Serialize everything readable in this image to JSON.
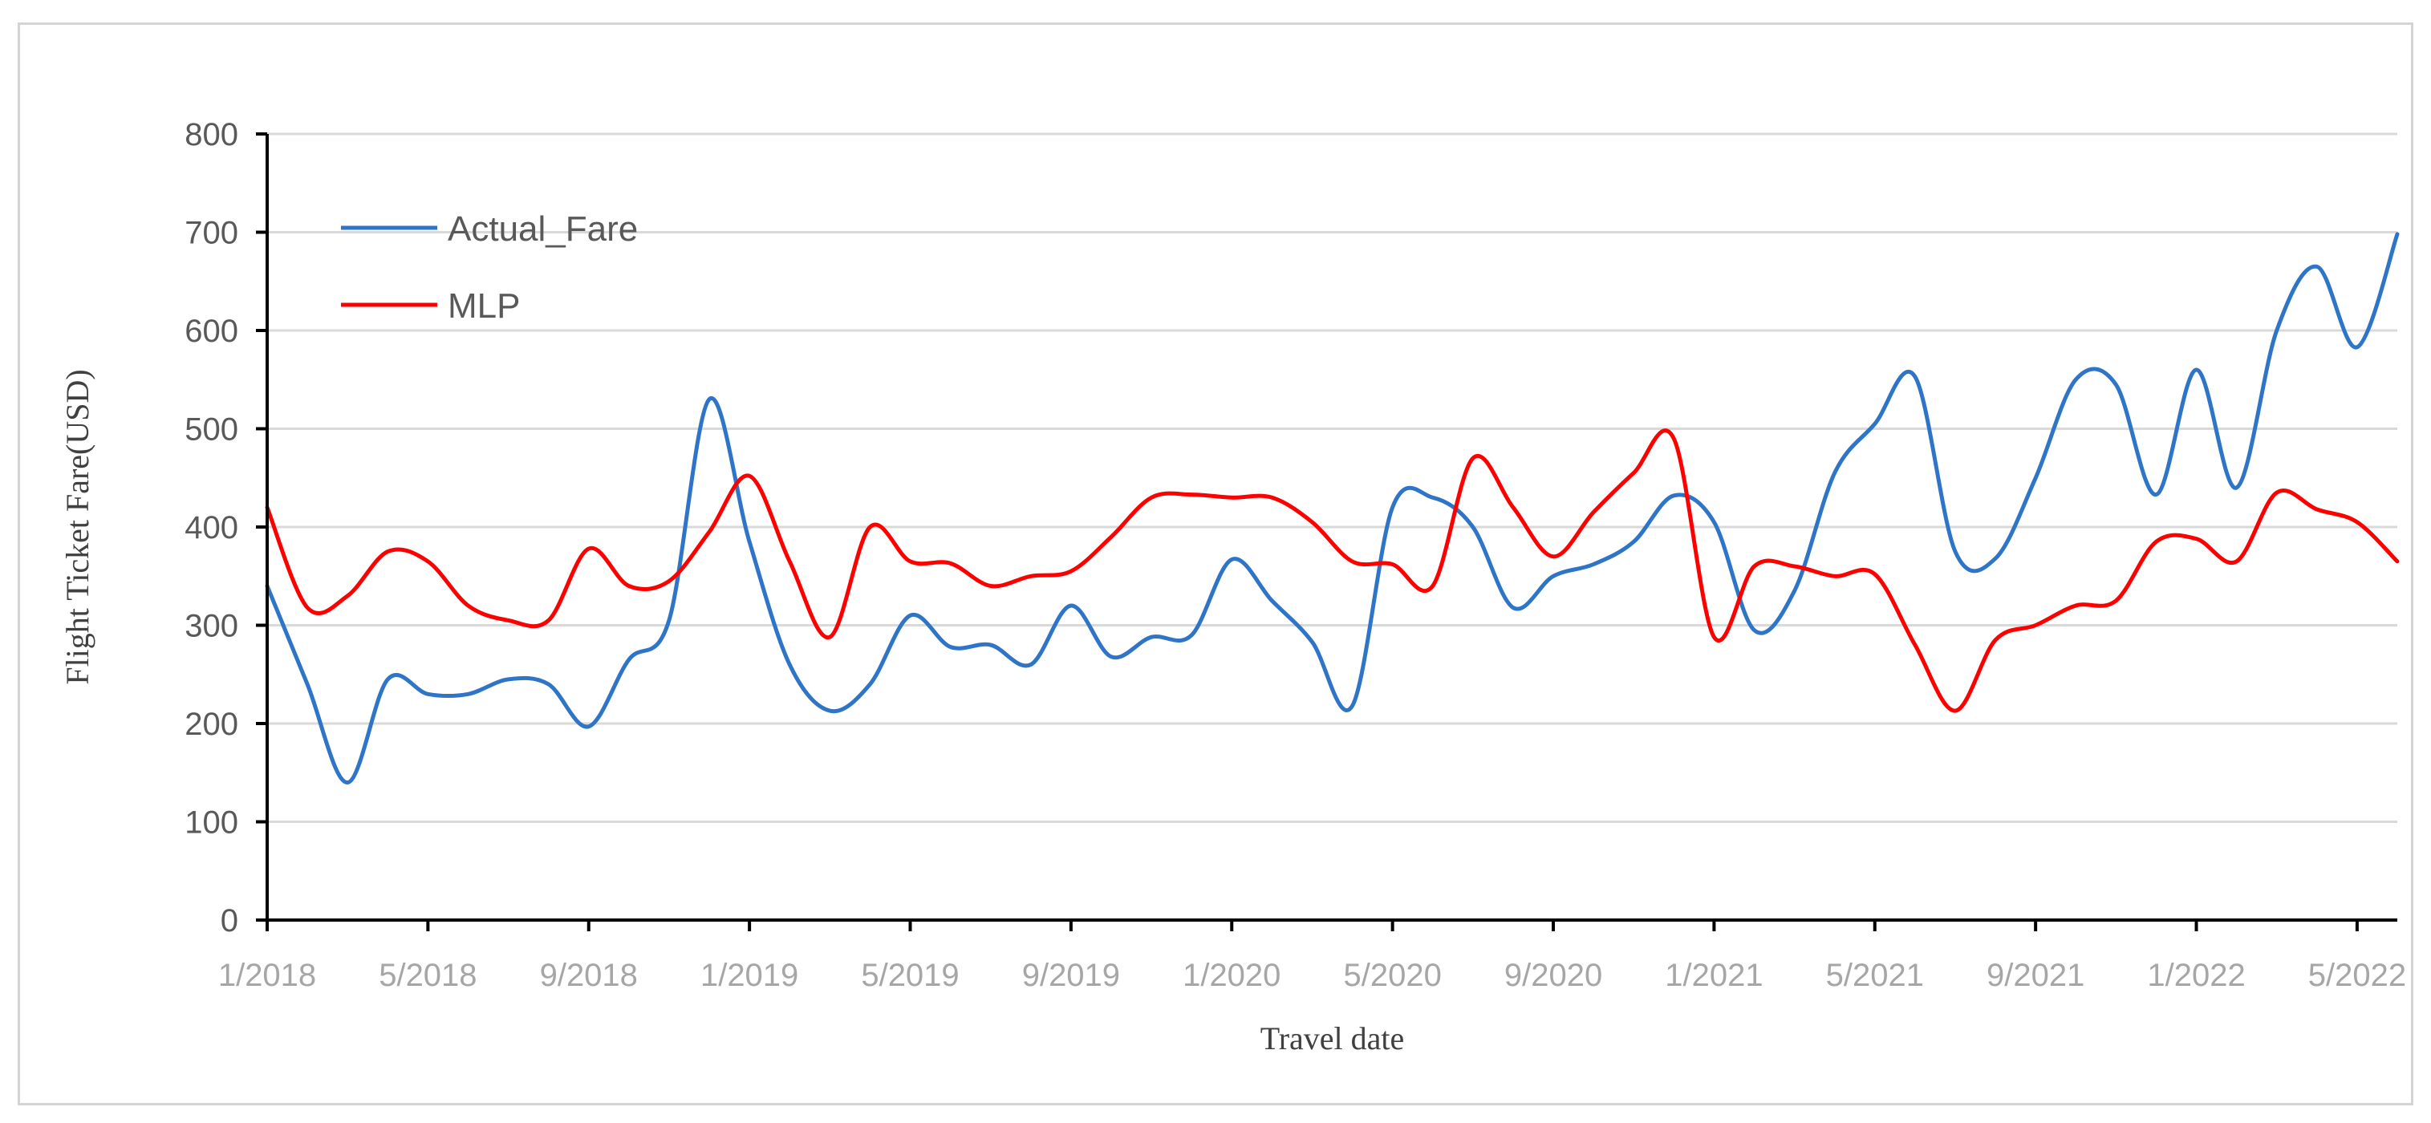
{
  "chart_data": {
    "type": "line",
    "title": "",
    "xlabel": "Travel date",
    "ylabel": "Flight Ticket Fare(USD)",
    "ylim": [
      0,
      800
    ],
    "yticks": [
      0,
      100,
      200,
      300,
      400,
      500,
      600,
      700,
      800
    ],
    "x_start": "1/2018",
    "x_end": "6/2022",
    "xtick_labels": [
      "1/2018",
      "5/2018",
      "9/2018",
      "1/2019",
      "5/2019",
      "9/2019",
      "1/2020",
      "5/2020",
      "9/2020",
      "1/2021",
      "5/2021",
      "9/2021",
      "1/2022",
      "5/2022"
    ],
    "grid": "horizontal",
    "legend_position": "top-left",
    "series": [
      {
        "name": "Actual_Fare",
        "color": "#2e75c8",
        "points": [
          [
            "1/2018",
            340
          ],
          [
            "2/2018",
            240
          ],
          [
            "3/2018",
            140
          ],
          [
            "4/2018",
            245
          ],
          [
            "5/2018",
            230
          ],
          [
            "6/2018",
            230
          ],
          [
            "7/2018",
            245
          ],
          [
            "8/2018",
            240
          ],
          [
            "9/2018",
            197
          ],
          [
            "10/2018",
            265
          ],
          [
            "11/2018",
            305
          ],
          [
            "12/2018",
            530
          ],
          [
            "1/2019",
            385
          ],
          [
            "2/2019",
            260
          ],
          [
            "3/2019",
            213
          ],
          [
            "4/2019",
            240
          ],
          [
            "5/2019",
            310
          ],
          [
            "6/2019",
            278
          ],
          [
            "7/2019",
            280
          ],
          [
            "8/2019",
            260
          ],
          [
            "9/2019",
            320
          ],
          [
            "10/2019",
            268
          ],
          [
            "11/2019",
            288
          ],
          [
            "12/2019",
            290
          ],
          [
            "1/2020",
            367
          ],
          [
            "2/2020",
            325
          ],
          [
            "3/2020",
            283
          ],
          [
            "4/2020",
            218
          ],
          [
            "5/2020",
            420
          ],
          [
            "6/2020",
            430
          ],
          [
            "7/2020",
            400
          ],
          [
            "8/2020",
            318
          ],
          [
            "9/2020",
            350
          ],
          [
            "10/2020",
            362
          ],
          [
            "11/2020",
            385
          ],
          [
            "12/2020",
            432
          ],
          [
            "1/2021",
            405
          ],
          [
            "2/2021",
            295
          ],
          [
            "3/2021",
            335
          ],
          [
            "4/2021",
            455
          ],
          [
            "5/2021",
            505
          ],
          [
            "6/2021",
            553
          ],
          [
            "7/2021",
            375
          ],
          [
            "8/2021",
            368
          ],
          [
            "9/2021",
            450
          ],
          [
            "10/2021",
            550
          ],
          [
            "11/2021",
            545
          ],
          [
            "12/2021",
            433
          ],
          [
            "1/2022",
            560
          ],
          [
            "2/2022",
            440
          ],
          [
            "3/2022",
            600
          ],
          [
            "4/2022",
            665
          ],
          [
            "5/2022",
            583
          ],
          [
            "6/2022",
            698
          ]
        ]
      },
      {
        "name": "MLP",
        "color": "#ff0000",
        "points": [
          [
            "1/2018",
            420
          ],
          [
            "2/2018",
            318
          ],
          [
            "3/2018",
            330
          ],
          [
            "4/2018",
            375
          ],
          [
            "5/2018",
            365
          ],
          [
            "6/2018",
            320
          ],
          [
            "7/2018",
            305
          ],
          [
            "8/2018",
            305
          ],
          [
            "9/2018",
            378
          ],
          [
            "10/2018",
            340
          ],
          [
            "11/2018",
            345
          ],
          [
            "12/2018",
            395
          ],
          [
            "1/2019",
            452
          ],
          [
            "2/2019",
            365
          ],
          [
            "3/2019",
            288
          ],
          [
            "4/2019",
            400
          ],
          [
            "5/2019",
            365
          ],
          [
            "6/2019",
            363
          ],
          [
            "7/2019",
            340
          ],
          [
            "8/2019",
            350
          ],
          [
            "9/2019",
            355
          ],
          [
            "10/2019",
            390
          ],
          [
            "11/2019",
            430
          ],
          [
            "12/2019",
            433
          ],
          [
            "1/2020",
            430
          ],
          [
            "2/2020",
            430
          ],
          [
            "3/2020",
            405
          ],
          [
            "4/2020",
            365
          ],
          [
            "5/2020",
            362
          ],
          [
            "6/2020",
            340
          ],
          [
            "7/2020",
            470
          ],
          [
            "8/2020",
            420
          ],
          [
            "9/2020",
            370
          ],
          [
            "10/2020",
            415
          ],
          [
            "11/2020",
            455
          ],
          [
            "12/2020",
            490
          ],
          [
            "1/2021",
            288
          ],
          [
            "2/2021",
            360
          ],
          [
            "3/2021",
            360
          ],
          [
            "4/2021",
            350
          ],
          [
            "5/2021",
            352
          ],
          [
            "6/2021",
            280
          ],
          [
            "7/2021",
            213
          ],
          [
            "8/2021",
            285
          ],
          [
            "9/2021",
            300
          ],
          [
            "10/2021",
            320
          ],
          [
            "11/2021",
            325
          ],
          [
            "12/2021",
            385
          ],
          [
            "1/2022",
            388
          ],
          [
            "2/2022",
            365
          ],
          [
            "3/2022",
            435
          ],
          [
            "4/2022",
            418
          ],
          [
            "5/2022",
            405
          ],
          [
            "6/2022",
            365
          ]
        ]
      }
    ]
  }
}
